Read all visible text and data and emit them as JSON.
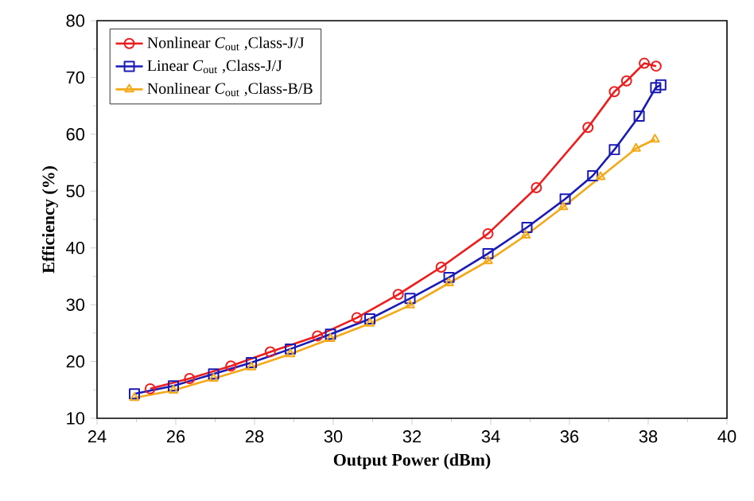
{
  "chart_data": {
    "type": "line",
    "xlabel": "Output Power (dBm)",
    "ylabel": "Efficiency (%)",
    "xlim": [
      24,
      40
    ],
    "xticks": [
      24,
      26,
      28,
      30,
      32,
      34,
      36,
      38,
      40
    ],
    "ylim": [
      10,
      80
    ],
    "yticks": [
      10,
      20,
      30,
      40,
      50,
      60,
      70,
      80
    ],
    "grid": false,
    "legend": "top left",
    "line_style": "solid",
    "series": [
      {
        "name": "Nonlinear *C*$_{out}$ ,Class-J/J",
        "color": "#ee1c1c",
        "marker": "circle",
        "x": [
          25.35,
          26.35,
          27.4,
          28.4,
          29.6,
          30.6,
          31.65,
          32.74,
          33.93,
          35.16,
          36.47,
          37.14,
          37.45,
          37.9,
          38.2
        ],
        "values": [
          15.2,
          17.0,
          19.2,
          21.7,
          24.5,
          27.7,
          31.8,
          36.6,
          42.5,
          50.6,
          61.2,
          67.5,
          69.4,
          72.5,
          72.0
        ]
      },
      {
        "name": "Linear *C*$_{out}$ ,Class-J/J",
        "color": "#1a1ab4",
        "marker": "square",
        "x": [
          24.95,
          25.94,
          26.96,
          27.92,
          28.91,
          29.93,
          30.93,
          31.95,
          32.94,
          33.93,
          34.92,
          35.89,
          36.59,
          37.14,
          37.77,
          38.19,
          38.32
        ],
        "values": [
          14.3,
          15.7,
          17.8,
          19.8,
          22.2,
          24.8,
          27.5,
          31.1,
          34.8,
          39.0,
          43.6,
          48.6,
          52.7,
          57.3,
          63.2,
          68.2,
          68.7
        ]
      },
      {
        "name": "Nonlinear *C*$_{out}$ ,Class-B/B",
        "color": "#f5a818",
        "marker": "triangle",
        "x": [
          24.95,
          25.94,
          26.96,
          27.92,
          28.91,
          29.93,
          30.93,
          31.95,
          32.94,
          33.93,
          34.89,
          35.84,
          36.79,
          37.69,
          38.17
        ],
        "values": [
          13.6,
          14.9,
          17.0,
          19.0,
          21.3,
          24.0,
          26.7,
          29.9,
          33.8,
          37.7,
          42.2,
          47.2,
          52.5,
          57.5,
          59.1
        ]
      }
    ]
  }
}
